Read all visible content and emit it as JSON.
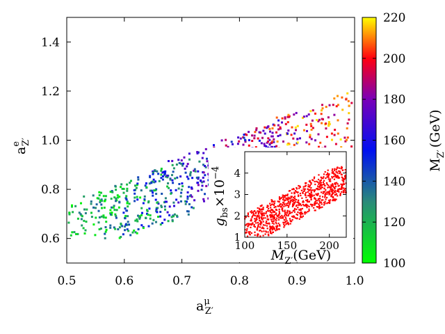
{
  "chart_data": [
    {
      "type": "scatter",
      "role": "main",
      "xlabel": "a",
      "xlabel_sup": "μ",
      "xlabel_sub": "Z′",
      "ylabel": "a",
      "ylabel_sup": "e",
      "ylabel_sub": "Z′",
      "xlim": [
        0.5,
        1.0
      ],
      "ylim": [
        0.5,
        1.5
      ],
      "xticks": [
        0.5,
        0.6,
        0.7,
        0.8,
        0.9,
        1.0
      ],
      "xtick_labels": [
        "0.5",
        "0.6",
        "0.7",
        "0.8",
        "0.9",
        "1.0"
      ],
      "yticks": [
        0.6,
        0.8,
        1.0,
        1.2,
        1.4
      ],
      "ytick_labels": [
        "0.6",
        "0.8",
        "1.0",
        "1.2",
        "1.4"
      ],
      "color_variable": "M_Z′ (GeV)",
      "generator": {
        "count": 850,
        "seed": 17,
        "mass_range": [
          100,
          220
        ],
        "x_relation": "x ≈ 0.5 + (M − 100)/240 + noise(±0.12), clipped to [0.5, 1.0]",
        "y_relation": "y ≈ 0.62 + 0.87·(x − 0.5) + 0.04·(M − 100)/120 ± 0.12"
      },
      "colorbar": {
        "label": "M",
        "label_sub": "Z′",
        "label_unit": "(GeV)",
        "range": [
          100,
          220
        ],
        "ticks": [
          100,
          120,
          140,
          160,
          180,
          200,
          220
        ],
        "tick_labels": [
          "100",
          "120",
          "140",
          "160",
          "180",
          "200",
          "220"
        ],
        "stops": [
          {
            "value": 100,
            "color": "#00ff00"
          },
          {
            "value": 130,
            "color": "#2a8a7a"
          },
          {
            "value": 155,
            "color": "#0010f0"
          },
          {
            "value": 180,
            "color": "#7a00b8"
          },
          {
            "value": 200,
            "color": "#ff0010"
          },
          {
            "value": 220,
            "color": "#ffff00"
          }
        ]
      }
    },
    {
      "type": "scatter",
      "role": "inset",
      "xlabel": "M",
      "xlabel_sub": "Z′",
      "xlabel_unit": "(GeV)",
      "ylabel": "g",
      "ylabel_sub": "bs",
      "ylabel_mult": "×10",
      "ylabel_exp": "−4",
      "xlim": [
        100,
        220
      ],
      "ylim": [
        1,
        5
      ],
      "xticks": [
        100,
        150,
        200
      ],
      "xtick_labels": [
        "100",
        "150",
        "200"
      ],
      "yticks": [
        1,
        2,
        3,
        4
      ],
      "ytick_labels": [
        "1",
        "2",
        "3",
        "4"
      ],
      "point_color": "#ff0000",
      "generator": {
        "count": 900,
        "seed": 41,
        "relation": "g_bs ≈ 1.3 + 2.5·(M − 100)/120 ± 0.8, clipped to [1, 4.3]"
      }
    }
  ]
}
